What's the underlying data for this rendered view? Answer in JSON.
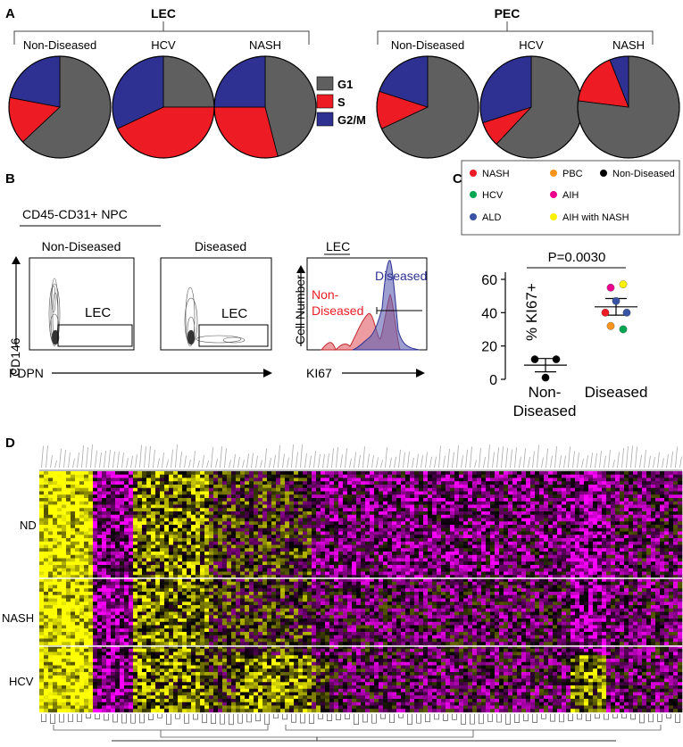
{
  "panels": {
    "a": "A",
    "b": "B",
    "c": "C",
    "d": "D"
  },
  "panel_a": {
    "groups": [
      {
        "title": "LEC",
        "pies": [
          {
            "label": "Non-Diseased",
            "values": {
              "G1": 63,
              "S": 15,
              "G2/M": 22
            }
          },
          {
            "label": "HCV",
            "values": {
              "G1": 25,
              "S": 43,
              "G2/M": 32
            }
          },
          {
            "label": "NASH",
            "values": {
              "G1": 46,
              "S": 29,
              "G2/M": 25
            }
          }
        ]
      },
      {
        "title": "PEC",
        "pies": [
          {
            "label": "Non-Diseased",
            "values": {
              "G1": 68,
              "S": 12,
              "G2/M": 20
            }
          },
          {
            "label": "HCV",
            "values": {
              "G1": 62,
              "S": 8,
              "G2/M": 30
            }
          },
          {
            "label": "NASH",
            "values": {
              "G1": 77,
              "S": 17,
              "G2/M": 6
            }
          }
        ]
      }
    ],
    "legend": [
      {
        "label": "G1",
        "color": "#5f5f5f"
      },
      {
        "label": "S",
        "color": "#ed1c24"
      },
      {
        "label": "G2/M",
        "color": "#2e3192"
      }
    ]
  },
  "panel_b": {
    "subtitle": "CD45-CD31+ NPC",
    "plots": [
      {
        "title": "Non-Diseased",
        "gate": "LEC"
      },
      {
        "title": "Diseased",
        "gate": "LEC"
      }
    ],
    "y_axis": "CD146",
    "x_axis": "PDPN",
    "hist": {
      "title": "LEC",
      "y_axis": "Cell Number",
      "x_axis": "KI67",
      "label_diseased": "Diseased",
      "label_nd_1": "Non-",
      "label_nd_2": "Diseased"
    }
  },
  "chart_data": {
    "type": "scatter",
    "ylabel": "% KI67+",
    "ylim": [
      0,
      60
    ],
    "yticks": [
      0,
      20,
      40,
      60
    ],
    "categories": [
      "Non-\nDiseased",
      "Diseased"
    ],
    "category_line1": [
      "Non-",
      "Diseased"
    ],
    "category_line2": [
      "Diseased",
      ""
    ],
    "annotation": "P=0.0030",
    "legend": [
      {
        "label": "NASH",
        "color": "#ed1c24"
      },
      {
        "label": "PBC",
        "color": "#f7941d"
      },
      {
        "label": "Non-Diseased",
        "color": "#000000"
      },
      {
        "label": "HCV",
        "color": "#00a651"
      },
      {
        "label": "AIH",
        "color": "#ec008c"
      },
      {
        "label": "ALD",
        "color": "#3953a4"
      },
      {
        "label": "AIH with NASH",
        "color": "#fff200"
      }
    ],
    "points": [
      {
        "group": "Non-Diseased",
        "type": "Non-Diseased",
        "x": -0.12,
        "y": 12
      },
      {
        "group": "Non-Diseased",
        "type": "Non-Diseased",
        "x": 0.12,
        "y": 12
      },
      {
        "group": "Non-Diseased",
        "type": "Non-Diseased",
        "x": 0.0,
        "y": 1
      },
      {
        "group": "Diseased",
        "type": "AIH",
        "x": -0.06,
        "y": 55
      },
      {
        "group": "Diseased",
        "type": "AIH with NASH",
        "x": 0.08,
        "y": 57
      },
      {
        "group": "Diseased",
        "type": "ALD",
        "x": 0.0,
        "y": 47
      },
      {
        "group": "Diseased",
        "type": "NASH",
        "x": -0.12,
        "y": 40
      },
      {
        "group": "Diseased",
        "type": "ALD",
        "x": 0.12,
        "y": 40
      },
      {
        "group": "Diseased",
        "type": "PBC",
        "x": -0.06,
        "y": 32
      },
      {
        "group": "Diseased",
        "type": "HCV",
        "x": 0.08,
        "y": 30
      }
    ],
    "means": [
      {
        "mean": 8.5,
        "sem": 4
      },
      {
        "mean": 43.5,
        "sem": 5
      }
    ]
  },
  "panel_d": {
    "row_labels": [
      "ND",
      "NASH",
      "HCV"
    ],
    "colors": {
      "low": "#ff00ff",
      "mid": "#000000",
      "high": "#ffff00"
    }
  }
}
